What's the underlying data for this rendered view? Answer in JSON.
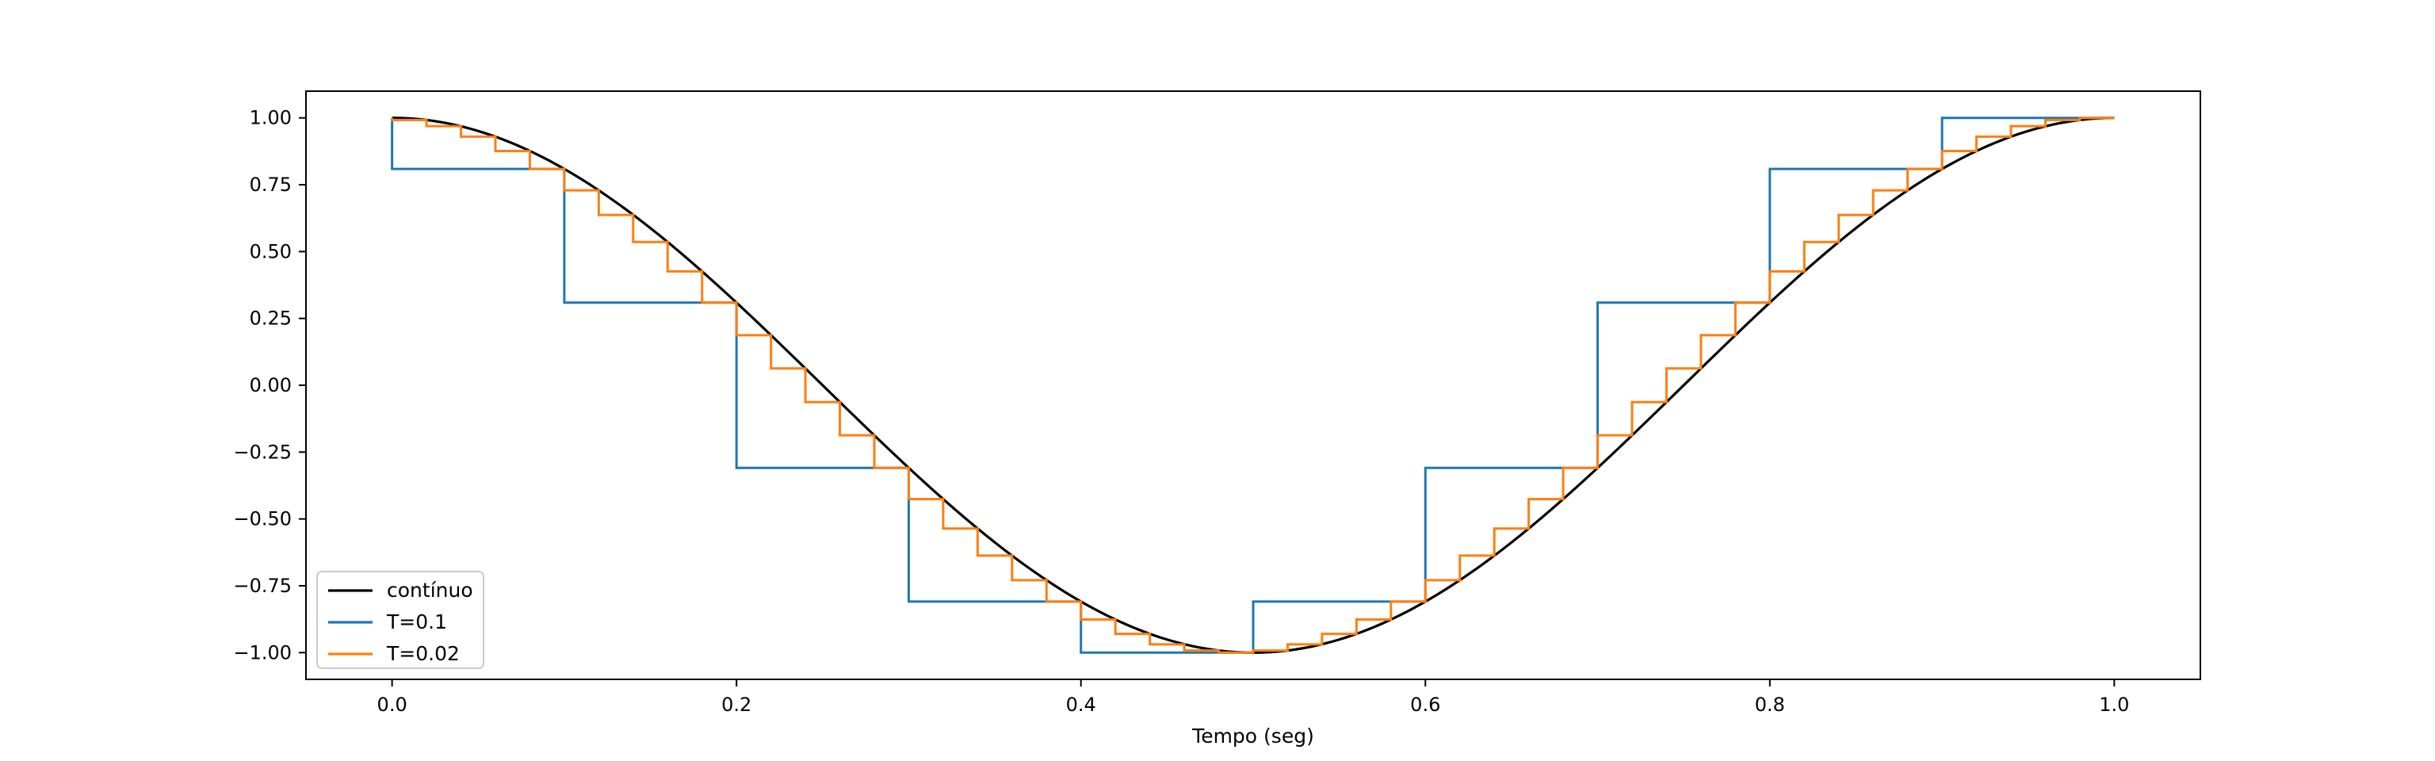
{
  "chart_data": {
    "type": "line",
    "title": "",
    "xlabel": "Tempo (seg)",
    "ylabel": "",
    "xlim": [
      -0.05,
      1.05
    ],
    "ylim": [
      -1.1,
      1.1
    ],
    "xticks": [
      0.0,
      0.2,
      0.4,
      0.6,
      0.8,
      1.0
    ],
    "xtick_labels": [
      "0.0",
      "0.2",
      "0.4",
      "0.6",
      "0.8",
      "1.0"
    ],
    "yticks": [
      1.0,
      0.75,
      0.5,
      0.25,
      0.0,
      -0.25,
      -0.5,
      -0.75,
      -1.0
    ],
    "ytick_labels": [
      "1.00",
      "0.75",
      "0.50",
      "0.25",
      "0.00",
      "−0.25",
      "−0.50",
      "−0.75",
      "−1.00"
    ],
    "grid": false,
    "legend_position": "lower-left",
    "series": [
      {
        "name": "contínuo",
        "color": "#000000",
        "kind": "line",
        "function": "cos(2*pi*t)",
        "x_range": [
          0.0,
          1.0
        ]
      },
      {
        "name": "T=0.1",
        "color": "#1f77b4",
        "kind": "step",
        "x": [
          0.0,
          0.1,
          0.2,
          0.3,
          0.4,
          0.5,
          0.6,
          0.7,
          0.8,
          0.9
        ],
        "y": [
          0.809,
          0.309,
          -0.309,
          -0.809,
          -1.0,
          -0.809,
          -0.309,
          0.309,
          0.809,
          1.0
        ]
      },
      {
        "name": "T=0.02",
        "color": "#ff7f0e",
        "kind": "step",
        "x": [
          0.0,
          0.02,
          0.04,
          0.06,
          0.08,
          0.1,
          0.12,
          0.14,
          0.16,
          0.18,
          0.2,
          0.22,
          0.24,
          0.26,
          0.28,
          0.3,
          0.32,
          0.34,
          0.36,
          0.38,
          0.4,
          0.42,
          0.44,
          0.46,
          0.48,
          0.5,
          0.52,
          0.54,
          0.56,
          0.58,
          0.6,
          0.62,
          0.64,
          0.66,
          0.68,
          0.7,
          0.72,
          0.74,
          0.76,
          0.78,
          0.8,
          0.82,
          0.84,
          0.86,
          0.88,
          0.9,
          0.92,
          0.94,
          0.96,
          0.98
        ],
        "y": [
          0.992,
          0.969,
          0.93,
          0.876,
          0.809,
          0.729,
          0.637,
          0.536,
          0.426,
          0.309,
          0.187,
          0.063,
          -0.063,
          -0.187,
          -0.309,
          -0.426,
          -0.536,
          -0.637,
          -0.729,
          -0.809,
          -0.876,
          -0.93,
          -0.969,
          -0.992,
          -1.0,
          -0.992,
          -0.969,
          -0.93,
          -0.876,
          -0.809,
          -0.729,
          -0.637,
          -0.536,
          -0.426,
          -0.309,
          -0.187,
          -0.063,
          0.063,
          0.187,
          0.309,
          0.426,
          0.536,
          0.637,
          0.729,
          0.809,
          0.876,
          0.93,
          0.969,
          0.992,
          1.0
        ]
      }
    ]
  }
}
